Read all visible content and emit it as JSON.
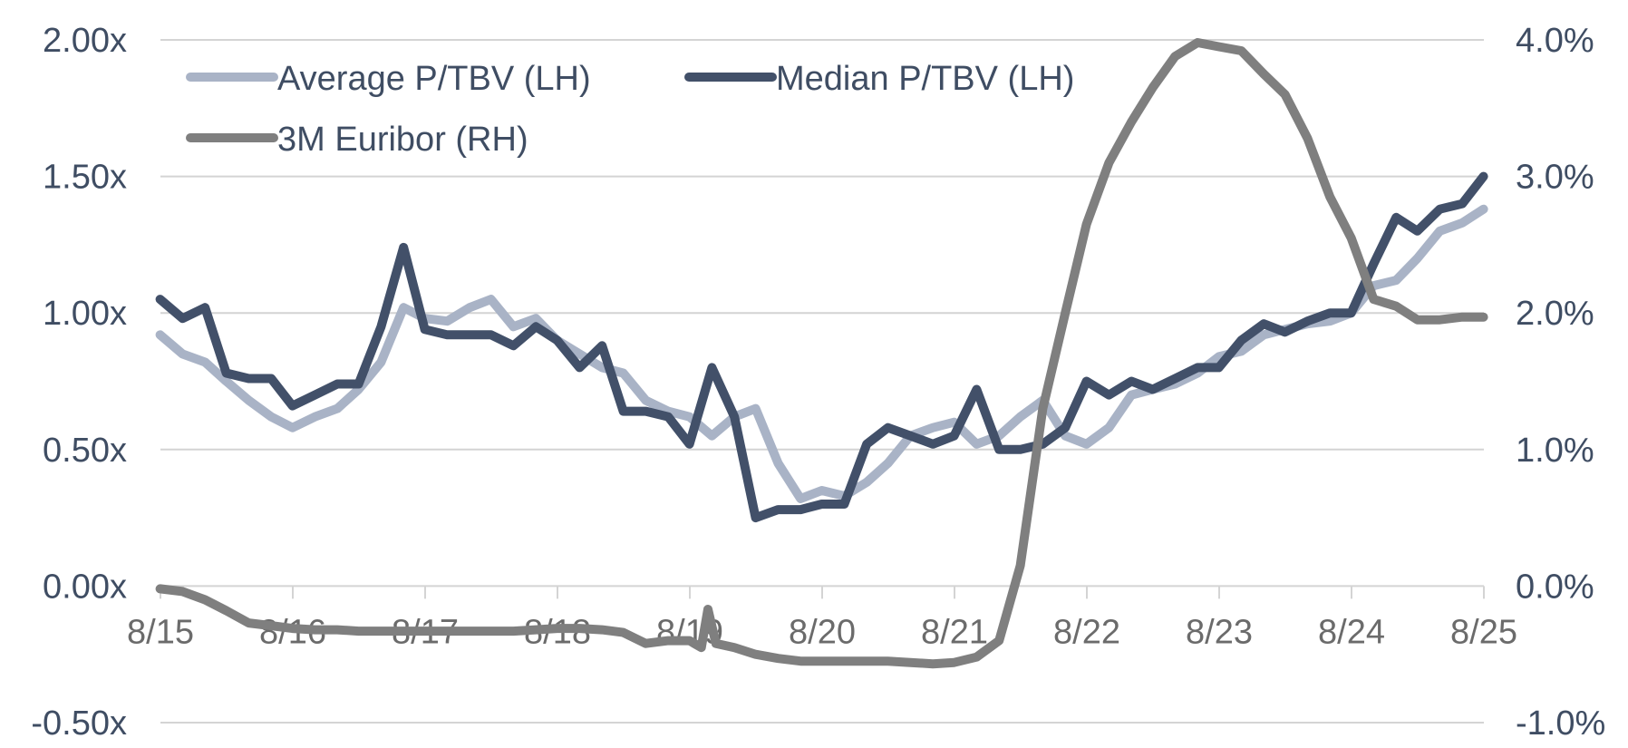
{
  "chart_data": {
    "type": "line",
    "title": "",
    "xlabel": "",
    "ylabel": "",
    "x_ticks": [
      "8/15",
      "8/16",
      "8/17",
      "8/18",
      "8/19",
      "8/20",
      "8/21",
      "8/22",
      "8/23",
      "8/24",
      "8/25"
    ],
    "x_range": [
      2015.583,
      2025.583
    ],
    "y_left": {
      "ticks": [
        "-0.50x",
        "0.00x",
        "0.50x",
        "1.00x",
        "1.50x",
        "2.00x"
      ],
      "lim": [
        -0.5,
        2.0
      ]
    },
    "y_right": {
      "ticks": [
        "-1.0%",
        "0.0%",
        "1.0%",
        "2.0%",
        "3.0%",
        "4.0%"
      ],
      "lim": [
        -1.0,
        4.0
      ]
    },
    "grid": true,
    "legend_position": "top-left",
    "series": [
      {
        "name": "Average P/TBV (LH)",
        "axis": "left",
        "color": "#a9b3c6",
        "x": [
          2015.58,
          2015.75,
          2015.92,
          2016.08,
          2016.25,
          2016.42,
          2016.58,
          2016.75,
          2016.92,
          2017.08,
          2017.25,
          2017.42,
          2017.58,
          2017.75,
          2017.92,
          2018.08,
          2018.25,
          2018.42,
          2018.58,
          2018.75,
          2018.92,
          2019.08,
          2019.25,
          2019.42,
          2019.58,
          2019.75,
          2019.92,
          2020.08,
          2020.25,
          2020.42,
          2020.58,
          2020.75,
          2020.92,
          2021.08,
          2021.25,
          2021.42,
          2021.58,
          2021.75,
          2021.92,
          2022.08,
          2022.25,
          2022.42,
          2022.58,
          2022.75,
          2022.92,
          2023.08,
          2023.25,
          2023.42,
          2023.58,
          2023.75,
          2023.92,
          2024.08,
          2024.25,
          2024.42,
          2024.58,
          2024.75,
          2024.92,
          2025.08,
          2025.25,
          2025.42,
          2025.58
        ],
        "values": [
          0.92,
          0.85,
          0.82,
          0.75,
          0.68,
          0.62,
          0.58,
          0.62,
          0.65,
          0.72,
          0.82,
          1.02,
          0.98,
          0.97,
          1.02,
          1.05,
          0.95,
          0.98,
          0.9,
          0.85,
          0.8,
          0.78,
          0.68,
          0.64,
          0.62,
          0.55,
          0.62,
          0.65,
          0.45,
          0.32,
          0.35,
          0.33,
          0.38,
          0.45,
          0.55,
          0.58,
          0.6,
          0.52,
          0.55,
          0.62,
          0.68,
          0.55,
          0.52,
          0.58,
          0.7,
          0.72,
          0.74,
          0.78,
          0.84,
          0.86,
          0.92,
          0.94,
          0.96,
          0.97,
          1.0,
          1.1,
          1.12,
          1.2,
          1.3,
          1.33,
          1.38
        ]
      },
      {
        "name": "Median P/TBV (LH)",
        "axis": "left",
        "color": "#425069",
        "x": [
          2015.58,
          2015.75,
          2015.92,
          2016.08,
          2016.25,
          2016.42,
          2016.58,
          2016.75,
          2016.92,
          2017.08,
          2017.25,
          2017.42,
          2017.58,
          2017.75,
          2017.92,
          2018.08,
          2018.25,
          2018.42,
          2018.58,
          2018.75,
          2018.92,
          2019.08,
          2019.25,
          2019.42,
          2019.58,
          2019.75,
          2019.92,
          2020.08,
          2020.25,
          2020.42,
          2020.58,
          2020.75,
          2020.92,
          2021.08,
          2021.25,
          2021.42,
          2021.58,
          2021.75,
          2021.92,
          2022.08,
          2022.25,
          2022.42,
          2022.58,
          2022.75,
          2022.92,
          2023.08,
          2023.25,
          2023.42,
          2023.58,
          2023.75,
          2023.92,
          2024.08,
          2024.25,
          2024.42,
          2024.58,
          2024.75,
          2024.92,
          2025.08,
          2025.25,
          2025.42,
          2025.58
        ],
        "values": [
          1.05,
          0.98,
          1.02,
          0.78,
          0.76,
          0.76,
          0.66,
          0.7,
          0.74,
          0.74,
          0.95,
          1.24,
          0.94,
          0.92,
          0.92,
          0.92,
          0.88,
          0.95,
          0.9,
          0.8,
          0.88,
          0.64,
          0.64,
          0.62,
          0.52,
          0.8,
          0.62,
          0.25,
          0.28,
          0.28,
          0.3,
          0.3,
          0.52,
          0.58,
          0.55,
          0.52,
          0.55,
          0.72,
          0.5,
          0.5,
          0.52,
          0.58,
          0.75,
          0.7,
          0.75,
          0.72,
          0.76,
          0.8,
          0.8,
          0.9,
          0.96,
          0.93,
          0.97,
          1.0,
          1.0,
          1.18,
          1.35,
          1.3,
          1.38,
          1.4,
          1.5
        ]
      },
      {
        "name": "3M Euribor (RH)",
        "axis": "right",
        "color": "#7f7f7f",
        "x": [
          2015.58,
          2015.75,
          2015.92,
          2016.08,
          2016.25,
          2016.42,
          2016.58,
          2016.75,
          2016.92,
          2017.08,
          2017.25,
          2017.42,
          2017.58,
          2017.75,
          2017.92,
          2018.08,
          2018.25,
          2018.42,
          2018.58,
          2018.75,
          2018.92,
          2019.08,
          2019.25,
          2019.42,
          2019.58,
          2019.67,
          2019.72,
          2019.78,
          2019.92,
          2020.08,
          2020.25,
          2020.42,
          2020.58,
          2020.75,
          2020.92,
          2021.08,
          2021.25,
          2021.42,
          2021.58,
          2021.75,
          2021.92,
          2022.08,
          2022.25,
          2022.42,
          2022.58,
          2022.75,
          2022.92,
          2023.08,
          2023.25,
          2023.42,
          2023.58,
          2023.75,
          2023.92,
          2024.08,
          2024.25,
          2024.42,
          2024.58,
          2024.75,
          2024.92,
          2025.08,
          2025.25,
          2025.42,
          2025.58
        ],
        "values": [
          -0.02,
          -0.04,
          -0.1,
          -0.18,
          -0.27,
          -0.29,
          -0.31,
          -0.32,
          -0.32,
          -0.33,
          -0.33,
          -0.33,
          -0.33,
          -0.33,
          -0.33,
          -0.33,
          -0.33,
          -0.32,
          -0.31,
          -0.31,
          -0.32,
          -0.34,
          -0.42,
          -0.4,
          -0.4,
          -0.45,
          -0.17,
          -0.42,
          -0.45,
          -0.5,
          -0.53,
          -0.55,
          -0.55,
          -0.55,
          -0.55,
          -0.55,
          -0.56,
          -0.57,
          -0.56,
          -0.52,
          -0.4,
          0.15,
          1.3,
          2.0,
          2.65,
          3.1,
          3.4,
          3.65,
          3.88,
          3.98,
          3.95,
          3.92,
          3.75,
          3.6,
          3.28,
          2.85,
          2.55,
          2.1,
          2.05,
          1.95,
          1.95,
          1.97,
          1.97
        ]
      }
    ]
  }
}
